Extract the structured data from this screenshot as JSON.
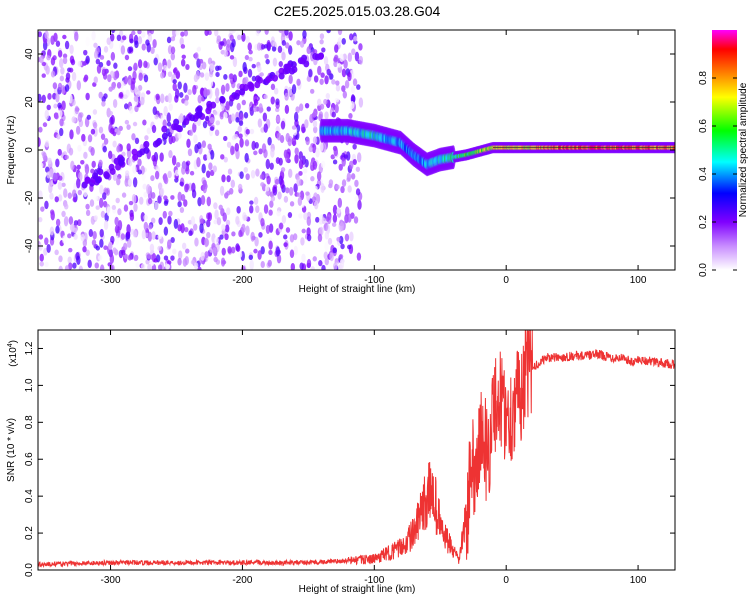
{
  "title": "C2E5.2025.015.03.28.G04",
  "chart_data": [
    {
      "type": "heatmap",
      "xlabel": "Height of straight line (km)",
      "ylabel": "Frequency (Hz)",
      "xlim": [
        -355,
        128
      ],
      "ylim": [
        -50,
        50
      ],
      "xticks": [
        -300,
        -200,
        -100,
        0,
        100
      ],
      "yticks": [
        -40,
        -20,
        0,
        20,
        40
      ],
      "tick_labels_x": [
        "-300",
        "-200",
        "-100",
        "0",
        "100"
      ],
      "tick_labels_y": [
        "-40",
        "-20",
        "0",
        "20",
        "40"
      ],
      "colorbar": {
        "label": "Normalized spectral amplitude",
        "range": [
          0,
          1
        ],
        "ticks": [
          "0.0",
          "0.2",
          "0.4",
          "0.6",
          "0.8"
        ],
        "colormap": [
          "#ffffff",
          "#8000ff",
          "#0000ff",
          "#00ffff",
          "#00ff00",
          "#ffff00",
          "#ff8000",
          "#ff0000",
          "#ff00ff"
        ]
      },
      "features": {
        "noise_region_x": [
          -355,
          -110
        ],
        "drifting_trace": [
          {
            "x": -320,
            "y": -15
          },
          {
            "x": -250,
            "y": 10
          },
          {
            "x": -200,
            "y": 25
          },
          {
            "x": -140,
            "y": 40
          }
        ],
        "signal_trace": [
          {
            "x": -140,
            "y": 8
          },
          {
            "x": -120,
            "y": 8
          },
          {
            "x": -100,
            "y": 6
          },
          {
            "x": -80,
            "y": 3
          },
          {
            "x": -70,
            "y": -2
          },
          {
            "x": -60,
            "y": -6
          },
          {
            "x": -50,
            "y": -4
          },
          {
            "x": -30,
            "y": -2
          },
          {
            "x": -10,
            "y": 1
          },
          {
            "x": 0,
            "y": 1
          },
          {
            "x": 30,
            "y": 1
          },
          {
            "x": 60,
            "y": 1
          },
          {
            "x": 90,
            "y": 1
          },
          {
            "x": 128,
            "y": 1
          }
        ],
        "signal_amplitude": [
          {
            "x": -140,
            "a": 0.45
          },
          {
            "x": -100,
            "a": 0.5
          },
          {
            "x": -70,
            "a": 0.4
          },
          {
            "x": -40,
            "a": 0.55
          },
          {
            "x": -10,
            "a": 0.75
          },
          {
            "x": 20,
            "a": 0.8
          },
          {
            "x": 60,
            "a": 0.95
          },
          {
            "x": 100,
            "a": 0.9
          },
          {
            "x": 128,
            "a": 0.85
          }
        ]
      }
    },
    {
      "type": "line",
      "xlabel": "Height of straight line (km)",
      "ylabel": "SNR (10 * v/v)",
      "y_multiplier": "(x10",
      "y_multiplier_exp": "4",
      "y_multiplier_close": ")",
      "xlim": [
        -355,
        128
      ],
      "ylim": [
        0,
        1.3
      ],
      "xticks": [
        -300,
        -200,
        -100,
        0,
        100
      ],
      "yticks": [
        0,
        0.2,
        0.4,
        0.6,
        0.8,
        1.0,
        1.2
      ],
      "tick_labels_x": [
        "-300",
        "-200",
        "-100",
        "0",
        "100"
      ],
      "tick_labels_y": [
        "0.0",
        "0.2",
        "0.4",
        "0.6",
        "0.8",
        "1.0",
        "1.2"
      ],
      "color": "#ee3333",
      "series": [
        {
          "x": [
            -355,
            -300,
            -250,
            -200,
            -150,
            -120,
            -100,
            -90,
            -80,
            -70,
            -62,
            -56,
            -52,
            -48,
            -44,
            -40,
            -36,
            -30,
            -26,
            -22,
            -18,
            -14,
            -10,
            -6,
            -2,
            2,
            6,
            10,
            15,
            20,
            25,
            30,
            40,
            50,
            60,
            70,
            80,
            90,
            96,
            100,
            110,
            120,
            128
          ],
          "y": [
            0.03,
            0.04,
            0.04,
            0.04,
            0.04,
            0.05,
            0.06,
            0.09,
            0.12,
            0.2,
            0.35,
            0.45,
            0.3,
            0.2,
            0.15,
            0.1,
            0.05,
            0.3,
            0.55,
            0.6,
            0.75,
            0.6,
            0.85,
            0.95,
            0.88,
            0.8,
            0.9,
            0.95,
            1.05,
            1.1,
            1.12,
            1.15,
            1.15,
            1.16,
            1.16,
            1.17,
            1.15,
            1.15,
            1.12,
            1.14,
            1.13,
            1.12,
            1.11
          ]
        }
      ]
    }
  ]
}
